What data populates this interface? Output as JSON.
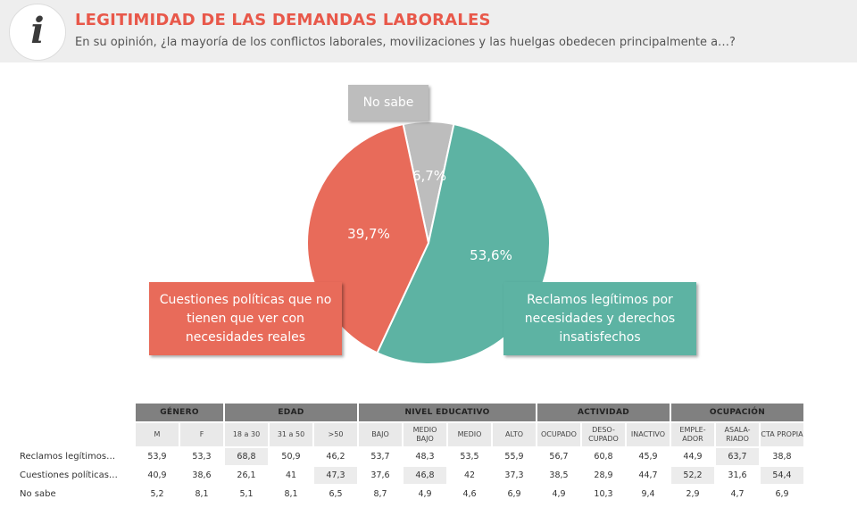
{
  "header": {
    "logo_letter": "i",
    "title": "LEGITIMIDAD DE LAS DEMANDAS LABORALES",
    "subtitle": "En su opinión, ¿la mayoría de los conflictos laborales, movilizaciones y las huelgas obedecen principalmente a…?"
  },
  "chart_data": {
    "type": "pie",
    "title": "LEGITIMIDAD DE LAS DEMANDAS LABORALES",
    "slices": [
      {
        "label": "Reclamos legítimos por necesidades y derechos insatisfechos",
        "value": 53.6,
        "display": "53,6%",
        "color": "#5db3a3"
      },
      {
        "label": "Cuestiones políticas que no tienen que ver con necesidades reales",
        "value": 39.7,
        "display": "39,7%",
        "color": "#e86b5a"
      },
      {
        "label": "No sabe",
        "value": 6.7,
        "display": "6,7%",
        "color": "#bdbdbd"
      }
    ]
  },
  "callouts": {
    "no_sabe": "No sabe",
    "cuestiones": "Cuestiones políticas que no tienen que ver con necesidades reales",
    "reclamos": "Reclamos legítimos por necesidades y derechos insatisfechos"
  },
  "table": {
    "groups": [
      "GÉNERO",
      "EDAD",
      "NIVEL EDUCATIVO",
      "ACTIVIDAD",
      "OCUPACIÓN"
    ],
    "subheaders": [
      "M",
      "F",
      "18 a 30",
      "31 a 50",
      ">50",
      "BAJO",
      "MEDIO BAJO",
      "MEDIO",
      "ALTO",
      "OCUPADO",
      "DESO-CUPADO",
      "INACTIVO",
      "EMPLE-ADOR",
      "ASALA-RIADO",
      "CTA PROPIA"
    ],
    "rows": [
      {
        "label": "Reclamos legítimos…",
        "values": [
          "53,9",
          "53,3",
          "68,8",
          "50,9",
          "46,2",
          "53,7",
          "48,3",
          "53,5",
          "55,9",
          "56,7",
          "60,8",
          "45,9",
          "44,9",
          "63,7",
          "38,8"
        ]
      },
      {
        "label": "Cuestiones políticas…",
        "values": [
          "40,9",
          "38,6",
          "26,1",
          "41",
          "47,3",
          "37,6",
          "46,8",
          "42",
          "37,3",
          "38,5",
          "28,9",
          "44,7",
          "52,2",
          "31,6",
          "54,4"
        ]
      },
      {
        "label": "No sabe",
        "values": [
          "5,2",
          "8,1",
          "5,1",
          "8,1",
          "6,5",
          "8,7",
          "4,9",
          "4,6",
          "6,9",
          "4,9",
          "10,3",
          "9,4",
          "2,9",
          "4,7",
          "6,9"
        ]
      }
    ]
  }
}
